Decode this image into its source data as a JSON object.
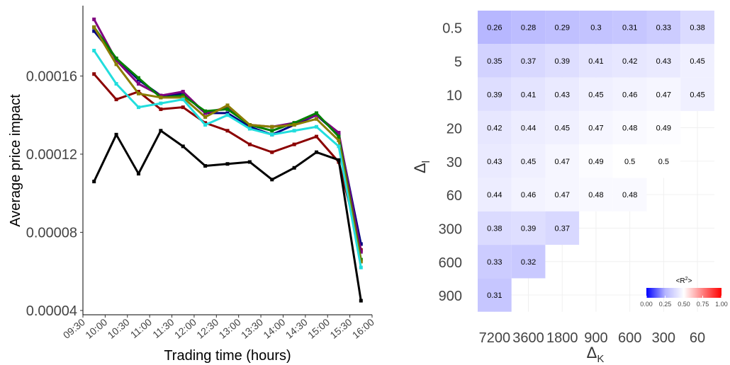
{
  "chart_data": [
    {
      "type": "line",
      "y_label": "Average price impact",
      "x_label": "Trading time (hours)",
      "x": [
        9.75,
        10.25,
        10.75,
        11.25,
        11.75,
        12.25,
        12.75,
        13.25,
        13.75,
        14.25,
        14.75,
        15.25,
        15.75
      ],
      "xlim": [
        9.5,
        16
      ],
      "xticks": [
        {
          "value": 9.5,
          "label": "09:30"
        },
        {
          "value": 10,
          "label": "10:00"
        },
        {
          "value": 10.5,
          "label": "10:30"
        },
        {
          "value": 11,
          "label": "11:00"
        },
        {
          "value": 11.5,
          "label": "11:30"
        },
        {
          "value": 12,
          "label": "12:00"
        },
        {
          "value": 12.5,
          "label": "12:30"
        },
        {
          "value": 13,
          "label": "13:00"
        },
        {
          "value": 13.5,
          "label": "13:30"
        },
        {
          "value": 14,
          "label": "14:00"
        },
        {
          "value": 14.5,
          "label": "14:30"
        },
        {
          "value": 15,
          "label": "15:00"
        },
        {
          "value": 15.5,
          "label": "15:30"
        },
        {
          "value": 16,
          "label": "16:00"
        }
      ],
      "ylim": [
        3.78e-05,
        0.000196
      ],
      "yticks": [
        4e-05,
        8e-05,
        0.00012,
        0.00016
      ],
      "series": [
        {
          "color": "#000080",
          "values": [
            0.000183,
            0.000169,
            0.000158,
            0.00015,
            0.000151,
            0.000141,
            0.000141,
            0.000134,
            0.00013,
            0.000135,
            0.00014,
            0.00013,
            7.4e-05
          ]
        },
        {
          "color": "#8b0000",
          "values": [
            0.000161,
            0.000148,
            0.000152,
            0.000143,
            0.000144,
            0.000136,
            0.000132,
            0.000125,
            0.000121,
            0.000125,
            0.000129,
            0.000116,
            7.1e-05
          ]
        },
        {
          "color": "#800080",
          "values": [
            0.000189,
            0.000168,
            0.000156,
            0.00015,
            0.000152,
            0.000141,
            0.000144,
            0.000135,
            0.000134,
            0.000136,
            0.00014,
            0.000131,
            7e-05
          ]
        },
        {
          "color": "#008000",
          "values": [
            0.000185,
            0.000169,
            0.000159,
            0.000149,
            0.00015,
            0.000142,
            0.000143,
            0.000135,
            0.000132,
            0.000136,
            0.000141,
            0.000129,
            6.6e-05
          ]
        },
        {
          "color": "#8b7d00",
          "values": [
            0.000185,
            0.000166,
            0.000151,
            0.000149,
            0.000149,
            0.000139,
            0.000145,
            0.000135,
            0.000134,
            0.000135,
            0.000138,
            0.000127,
            6.5e-05
          ]
        },
        {
          "color": "#22dddd",
          "values": [
            0.000173,
            0.000156,
            0.000144,
            0.000146,
            0.000148,
            0.000135,
            0.00014,
            0.000133,
            0.00013,
            0.000132,
            0.000134,
            0.000124,
            6.2e-05
          ]
        },
        {
          "color": "#000000",
          "values": [
            0.000106,
            0.00013,
            0.00011,
            0.000132,
            0.000124,
            0.000114,
            0.000115,
            0.000116,
            0.000107,
            0.000113,
            0.000121,
            0.000117,
            4.5e-05
          ]
        }
      ]
    },
    {
      "type": "heatmap",
      "x_label": "Δ",
      "x_label_sub": "K",
      "y_label": "Δ",
      "y_label_sub": "l",
      "x_categories": [
        7200,
        3600,
        1800,
        900,
        600,
        300,
        60
      ],
      "y_categories": [
        0.5,
        5,
        10,
        20,
        30,
        60,
        300,
        600,
        900
      ],
      "values": [
        [
          0.26,
          0.28,
          0.29,
          0.3,
          0.31,
          0.33,
          0.38
        ],
        [
          0.35,
          0.37,
          0.39,
          0.41,
          0.42,
          0.43,
          0.45
        ],
        [
          0.39,
          0.41,
          0.43,
          0.45,
          0.46,
          0.47,
          0.45
        ],
        [
          0.42,
          0.44,
          0.45,
          0.47,
          0.48,
          0.49,
          null
        ],
        [
          0.43,
          0.45,
          0.47,
          0.49,
          0.5,
          0.5,
          null
        ],
        [
          0.44,
          0.46,
          0.47,
          0.48,
          0.48,
          null,
          null
        ],
        [
          0.38,
          0.39,
          0.37,
          null,
          null,
          null,
          null
        ],
        [
          0.33,
          0.32,
          null,
          null,
          null,
          null,
          null
        ],
        [
          0.31,
          null,
          null,
          null,
          null,
          null,
          null
        ]
      ],
      "colorbar_title": "<R",
      "colorbar_title_sup": "2",
      "colorbar_title_end": ">",
      "colorbar_colors": [
        "#0000ff",
        "#ffffff",
        "#ff0000"
      ],
      "colorbar_lim": [
        0,
        1
      ],
      "colorbar_ticks": [
        {
          "value": 0,
          "label": "0.00"
        },
        {
          "value": 0.25,
          "label": "0.25"
        },
        {
          "value": 0.5,
          "label": "0.50"
        },
        {
          "value": 0.75,
          "label": "0.75"
        },
        {
          "value": 1,
          "label": "1.00"
        }
      ]
    }
  ]
}
